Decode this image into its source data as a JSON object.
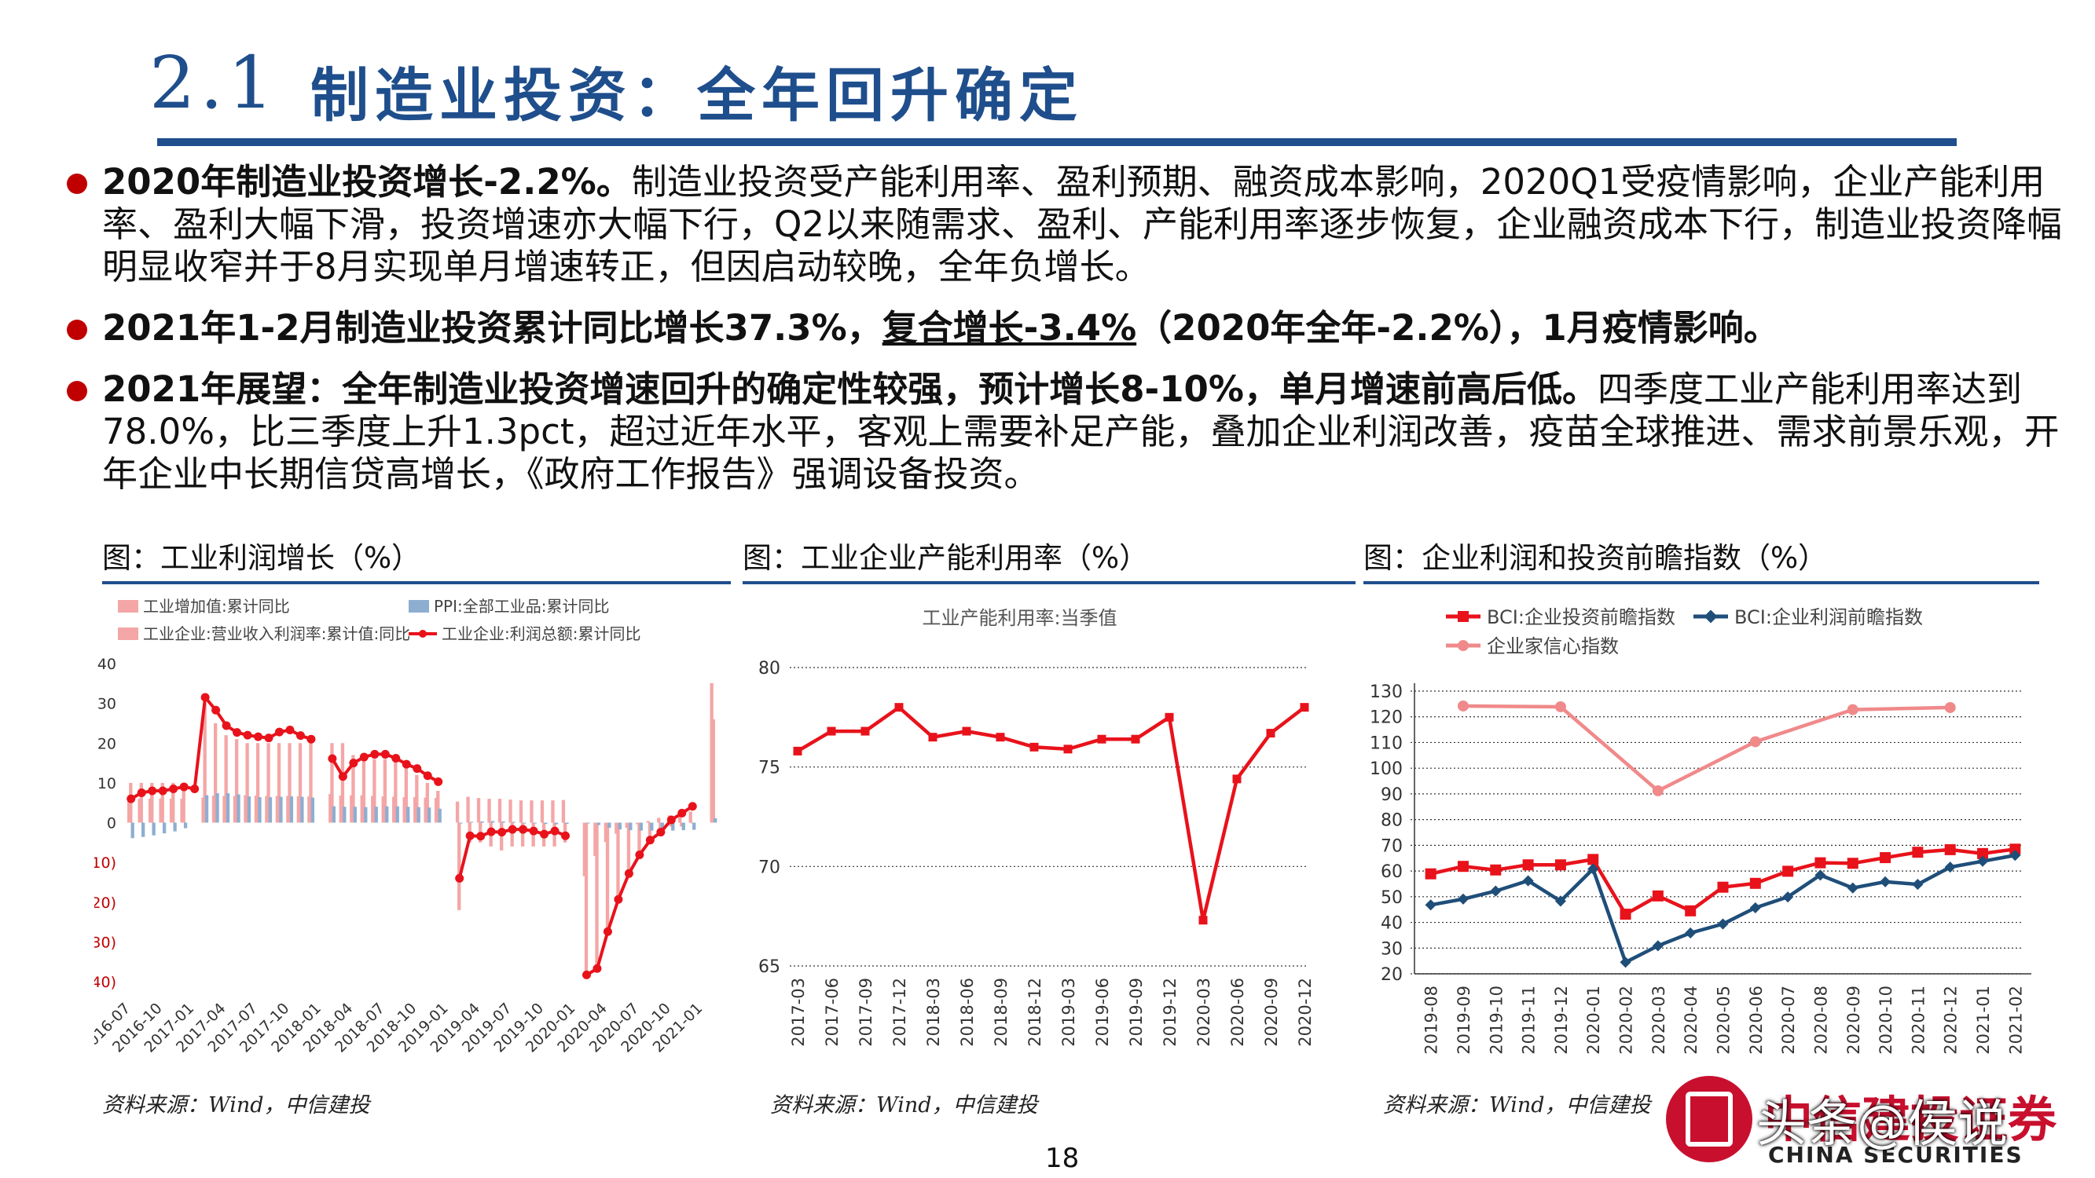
{
  "header": {
    "number": "2.1",
    "title": "制造业投资：全年回升确定"
  },
  "bullets": [
    {
      "parts": [
        {
          "text": "2020年制造业投资增长-2.2%。",
          "style": "b"
        },
        {
          "text": "制造业投资受产能利用率、盈利预期、融资成本影响，2020Q1受疫情影响，企业产能利用率、盈利大幅下滑，投资增速亦大幅下行，Q2以来随需求、盈利、产能利用率逐步恢复，企业融资成本下行，制造业投资降幅明显收窄并于8月实现单月增速转正，但因启动较晚，全年负增长。",
          "style": ""
        }
      ]
    },
    {
      "parts": [
        {
          "text": "2021年1-2月制造业投资累计同比增长37.3%，",
          "style": "b"
        },
        {
          "text": "复合增长-3.4%",
          "style": "b u"
        },
        {
          "text": "（2020年全年-2.2%），1月疫情影响。",
          "style": "b"
        }
      ]
    },
    {
      "parts": [
        {
          "text": "2021年展望：全年制造业投资增速回升的确定性较强，预计增长8-10%，单月增速前高后低。",
          "style": "b"
        },
        {
          "text": "四季度工业产能利用率达到78.0%，比三季度上升1.3pct，超过近年水平，客观上需要补足产能，叠加企业利润改善，疫苗全球推进、需求前景乐观，开年企业中长期信贷高增长，《政府工作报告》强调设备投资。",
          "style": ""
        }
      ]
    }
  ],
  "panels": {
    "p1": {
      "title": "图：工业利润增长（%）",
      "source": "资料来源：Wind，中信建投"
    },
    "p2": {
      "title": "图：工业企业产能利用率（%）",
      "source": "资料来源：Wind，中信建投"
    },
    "p3": {
      "title": "图：企业利润和投资前瞻指数（%）",
      "source": "资料来源：Wind，中信建投"
    }
  },
  "page_number": "18",
  "logo": {
    "cn": "中信建投证券",
    "en": "CHINA SECURITIES"
  },
  "watermark": "头条@侯说",
  "colors": {
    "brand": "#1f4e8c",
    "red": "#e8121b",
    "navy": "#1f4e79",
    "pink": "#f0898a",
    "steel": "#8eaed1"
  },
  "chart_data": [
    {
      "type": "bar",
      "title": "",
      "ylim": [
        -40,
        40
      ],
      "yticks": [
        -40,
        -30,
        -20,
        -10,
        0,
        10,
        20,
        30,
        40
      ],
      "ytick_labels": [
        "(40)",
        "(30)",
        "(20)",
        "(10)",
        "0",
        "10",
        "20",
        "30",
        "40"
      ],
      "x": [
        "2016-07",
        "2016-08",
        "2016-09",
        "2016-10",
        "2016-11",
        "2016-12",
        "2017-01",
        "2017-02",
        "2017-03",
        "2017-04",
        "2017-05",
        "2017-06",
        "2017-07",
        "2017-08",
        "2017-09",
        "2017-10",
        "2017-11",
        "2017-12",
        "2018-01",
        "2018-02",
        "2018-03",
        "2018-04",
        "2018-05",
        "2018-06",
        "2018-07",
        "2018-08",
        "2018-09",
        "2018-10",
        "2018-11",
        "2018-12",
        "2019-01",
        "2019-02",
        "2019-03",
        "2019-04",
        "2019-05",
        "2019-06",
        "2019-07",
        "2019-08",
        "2019-09",
        "2019-10",
        "2019-11",
        "2019-12",
        "2020-01",
        "2020-02",
        "2020-03",
        "2020-04",
        "2020-05",
        "2020-06",
        "2020-07",
        "2020-08",
        "2020-09",
        "2020-10",
        "2020-11",
        "2020-12",
        "2021-01",
        "2021-02"
      ],
      "xtick_labels": [
        "2016-07",
        "2016-10",
        "2017-01",
        "2017-04",
        "2017-07",
        "2017-10",
        "2018-01",
        "2018-04",
        "2018-07",
        "2018-10",
        "2019-01",
        "2019-04",
        "2019-07",
        "2019-10",
        "2020-01",
        "2020-04",
        "2020-07",
        "2020-10",
        "2021-01"
      ],
      "series": [
        {
          "name": "工业增加值:累计同比",
          "kind": "bar",
          "color": "#f4a6a6",
          "values": [
            6.0,
            6.0,
            6.0,
            6.0,
            6.0,
            6.0,
            null,
            6.3,
            6.8,
            6.7,
            6.7,
            6.9,
            6.8,
            6.7,
            6.7,
            6.7,
            6.6,
            6.6,
            null,
            7.2,
            6.8,
            6.9,
            6.9,
            6.7,
            6.6,
            6.5,
            6.4,
            6.4,
            6.3,
            6.2,
            null,
            5.3,
            6.5,
            6.2,
            6.0,
            6.0,
            5.8,
            5.6,
            5.6,
            5.6,
            5.6,
            5.7,
            null,
            -13.5,
            -8.4,
            -4.9,
            -2.8,
            -1.3,
            -0.4,
            0.4,
            1.2,
            1.8,
            2.3,
            2.8,
            null,
            35.1
          ]
        },
        {
          "name": "PPI:全部工业品:累计同比",
          "kind": "bar",
          "color": "#8eaed1",
          "values": [
            -3.9,
            -3.6,
            -3.2,
            -2.7,
            -2.2,
            -1.4,
            null,
            6.9,
            7.4,
            7.4,
            7.1,
            6.6,
            6.4,
            6.4,
            6.5,
            6.6,
            6.5,
            6.3,
            null,
            4.1,
            4.0,
            4.0,
            3.9,
            4.0,
            4.1,
            4.1,
            4.0,
            3.9,
            3.8,
            3.5,
            null,
            0.0,
            0.2,
            0.3,
            0.4,
            0.3,
            0.2,
            0.0,
            -0.1,
            -0.3,
            -0.4,
            -0.3,
            null,
            -0.2,
            -0.6,
            -1.3,
            -1.7,
            -1.9,
            -2.0,
            -2.0,
            -2.0,
            -2.0,
            -1.9,
            -1.8,
            null,
            1.1
          ]
        },
        {
          "name": "工业企业:营业收入利润率:累计值:同比",
          "kind": "bar",
          "color": "#f4a6a6",
          "values": [
            10.0,
            10.0,
            10.0,
            10.0,
            10.0,
            10.0,
            null,
            30.0,
            25.0,
            22.0,
            21.0,
            20.0,
            20.0,
            20.0,
            20.0,
            20.0,
            20.0,
            20.0,
            null,
            20.0,
            20.0,
            17.0,
            17.0,
            16.0,
            16.0,
            16.0,
            14.0,
            12.0,
            10.0,
            8.0,
            null,
            -22.0,
            -5.0,
            -5.0,
            -6.0,
            -7.0,
            -6.0,
            -6.0,
            -6.0,
            -6.0,
            -6.0,
            -5.0,
            null,
            -38.0,
            -37.0,
            -27.0,
            -19.0,
            -12.0,
            -8.0,
            -4.0,
            -2.0,
            -1.0,
            -1.0,
            0.0,
            null,
            26.0
          ]
        },
        {
          "name": "工业企业:利润总额:累计同比",
          "kind": "line",
          "color": "#e8121b",
          "values": [
            6.0,
            7.5,
            8.0,
            8.0,
            8.5,
            9.0,
            8.5,
            31.5,
            28.3,
            24.4,
            22.7,
            22.0,
            21.6,
            21.3,
            22.8,
            23.3,
            21.9,
            21.0,
            null,
            16.1,
            11.6,
            15.0,
            16.5,
            17.2,
            17.2,
            16.2,
            14.7,
            13.6,
            11.8,
            10.3,
            null,
            -14.0,
            -3.3,
            -3.4,
            -2.3,
            -2.4,
            -1.7,
            -1.7,
            -2.1,
            -2.9,
            -2.1,
            -3.3,
            null,
            -38.3,
            -36.7,
            -27.4,
            -19.3,
            -12.8,
            -8.1,
            -4.4,
            -2.4,
            0.7,
            2.4,
            4.1,
            null,
            null
          ]
        }
      ]
    },
    {
      "type": "line",
      "title": "工业产能利用率:当季值",
      "ylim": [
        65,
        80
      ],
      "yticks": [
        65,
        70,
        75,
        80
      ],
      "x": [
        "2017-03",
        "2017-06",
        "2017-09",
        "2017-12",
        "2018-03",
        "2018-06",
        "2018-09",
        "2018-12",
        "2019-03",
        "2019-06",
        "2019-09",
        "2019-12",
        "2020-03",
        "2020-06",
        "2020-09",
        "2020-12"
      ],
      "series": [
        {
          "name": "工业产能利用率:当季值",
          "color": "#e8121b",
          "values": [
            75.8,
            76.8,
            76.8,
            78.0,
            76.5,
            76.8,
            76.5,
            76.0,
            75.9,
            76.4,
            76.4,
            77.5,
            67.3,
            74.4,
            76.7,
            78.0
          ]
        }
      ]
    },
    {
      "type": "line",
      "title": "",
      "ylim": [
        20,
        130
      ],
      "yticks": [
        20,
        30,
        40,
        50,
        60,
        70,
        80,
        90,
        100,
        110,
        120,
        130
      ],
      "x": [
        "2019-08",
        "2019-09",
        "2019-10",
        "2019-11",
        "2019-12",
        "2020-01",
        "2020-02",
        "2020-03",
        "2020-04",
        "2020-05",
        "2020-06",
        "2020-07",
        "2020-08",
        "2020-09",
        "2020-10",
        "2020-11",
        "2020-12",
        "2021-01",
        "2021-02"
      ],
      "series": [
        {
          "name": "BCI:企业投资前瞻指数",
          "color": "#e8121b",
          "marker": "square",
          "values": [
            58.9,
            61.8,
            60.4,
            62.4,
            62.4,
            64.5,
            43.2,
            50.3,
            44.5,
            53.7,
            55.2,
            59.9,
            63.2,
            63.0,
            65.2,
            67.3,
            68.3,
            66.8,
            68.5
          ]
        },
        {
          "name": "BCI:企业利润前瞻指数",
          "color": "#1f4e79",
          "marker": "diamond",
          "values": [
            46.8,
            49.1,
            52.2,
            56.2,
            48.3,
            60.8,
            24.5,
            30.9,
            35.9,
            39.4,
            45.7,
            49.9,
            58.4,
            53.4,
            55.8,
            54.8,
            61.5,
            63.8,
            66.1
          ]
        },
        {
          "name": "企业家信心指数",
          "color": "#f0898a",
          "marker": "circle",
          "values": [
            null,
            124.2,
            null,
            null,
            123.9,
            null,
            null,
            91.2,
            null,
            null,
            110.3,
            null,
            null,
            122.8,
            null,
            null,
            123.6,
            null,
            null
          ]
        }
      ]
    }
  ]
}
